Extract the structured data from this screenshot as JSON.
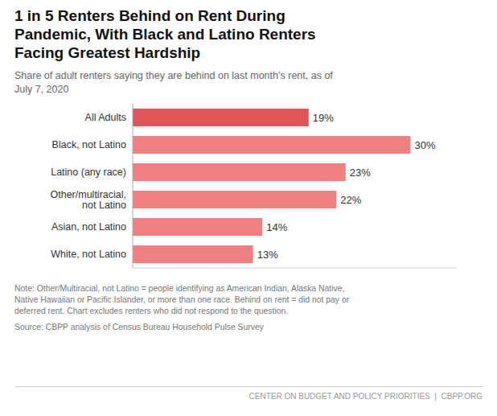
{
  "chart_data": {
    "type": "bar",
    "orientation": "horizontal",
    "title": "1 in 5 Renters Behind on Rent During\nPandemic, With Black and Latino Renters\nFacing Greatest Hardship",
    "subtitle": "Share of adult renters saying they are behind on last month’s rent, as of\nJuly 7, 2020",
    "categories": [
      "All Adults",
      "Black, not Latino",
      "Latino (any race)",
      "Other/multiracial,\nnot Latino",
      "Asian, not Latino",
      "White, not Latino"
    ],
    "values": [
      19,
      30,
      23,
      22,
      14,
      13
    ],
    "value_labels": [
      "19%",
      "30%",
      "23%",
      "22%",
      "14%",
      "13%"
    ],
    "colors": [
      "#E05555",
      "#F08080",
      "#F08080",
      "#F08080",
      "#F08080",
      "#F08080"
    ],
    "data_labels": true,
    "xlim": [
      0,
      35
    ],
    "tick_labels": "y",
    "grid": false,
    "annotations": [
      "Note: Other/Multiracial, not Latino = people identifying as American Indian, Alaska Native,\nNative Hawaiian or Pacific Islander, or more than one race. Behind on rent = did not pay or\ndeferred rent. Chart excludes renters who did not respond to the question.",
      "Source: CBPP analysis of Census Bureau Household Pulse Survey",
      "CENTER ON BUDGET AND POLICY PRIORITIES  |  CBPP.ORG"
    ]
  }
}
